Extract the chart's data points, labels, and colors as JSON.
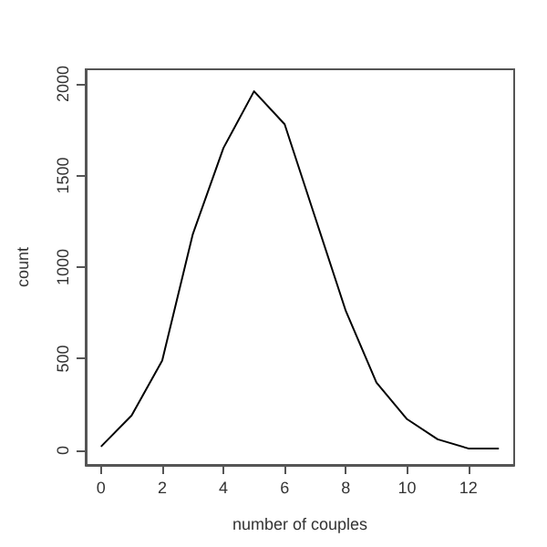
{
  "chart_data": {
    "type": "line",
    "xlabel": "number of couples",
    "ylabel": "count",
    "x": [
      0,
      1,
      2,
      3,
      4,
      5,
      6,
      7,
      8,
      9,
      10,
      11,
      12,
      13
    ],
    "values": [
      20,
      190,
      490,
      1180,
      1650,
      1960,
      1780,
      1270,
      760,
      370,
      170,
      60,
      10,
      10
    ],
    "color": "#000000",
    "xlim": [
      -0.5,
      13.5
    ],
    "xticks": [
      0,
      2,
      4,
      6,
      8,
      10,
      12
    ],
    "ylim": [
      -80,
      2080
    ],
    "yticks": [
      0,
      500,
      1000,
      1500,
      2000
    ],
    "grid": false,
    "marker": "none",
    "line_style": "solid"
  }
}
